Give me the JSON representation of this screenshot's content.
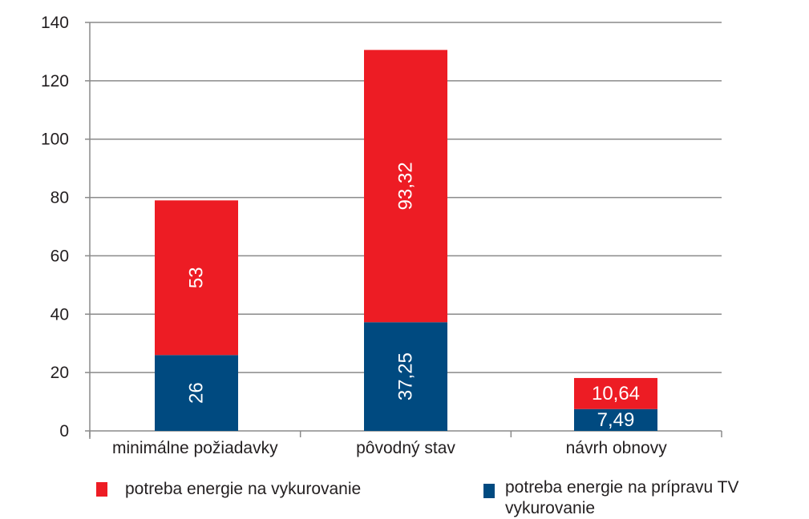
{
  "chart_data": {
    "type": "bar",
    "stacked": true,
    "categories": [
      "minimálne požiadavky",
      "pôvodný stav",
      "návrh obnovy"
    ],
    "series": [
      {
        "name": "potreba energie na prípravu TV vykurovanie",
        "color": "#004A80",
        "values": [
          26,
          37.25,
          7.49
        ],
        "labels": [
          "26",
          "37,25",
          "7,49"
        ]
      },
      {
        "name": "potreba energie na vykurovanie",
        "color": "#ED1C24",
        "values": [
          53,
          93.32,
          10.64
        ],
        "labels": [
          "53",
          "93,32",
          "10,64"
        ]
      }
    ],
    "ylim": [
      0,
      140
    ],
    "yticks": [
      "0",
      "20",
      "40",
      "60",
      "80",
      "100",
      "120",
      "140"
    ],
    "grid": true,
    "legend_position": "bottom",
    "title": "",
    "xlabel": "",
    "ylabel": ""
  }
}
